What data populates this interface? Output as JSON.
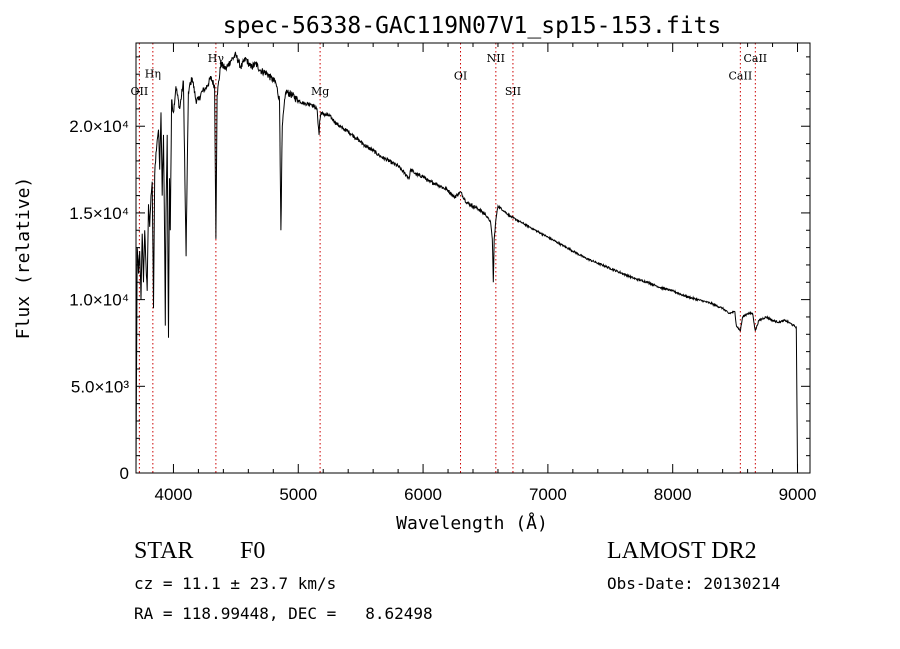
{
  "chart_data": {
    "type": "line",
    "title": "spec-56338-GAC119N07V1_sp15-153.fits",
    "xlabel": "Wavelength (Å)",
    "ylabel": "Flux (relative)",
    "xlim": [
      3700,
      9100
    ],
    "ylim": [
      0,
      24800
    ],
    "x_ticks": [
      {
        "value": 4000,
        "label": "4000"
      },
      {
        "value": 5000,
        "label": "5000"
      },
      {
        "value": 6000,
        "label": "6000"
      },
      {
        "value": 7000,
        "label": "7000"
      },
      {
        "value": 8000,
        "label": "8000"
      },
      {
        "value": 9000,
        "label": "9000"
      }
    ],
    "y_ticks": [
      {
        "value": 0,
        "label": "0"
      },
      {
        "value": 5000,
        "label": "5.0×10³"
      },
      {
        "value": 10000,
        "label": "1.0×10⁴"
      },
      {
        "value": 15000,
        "label": "1.5×10⁴"
      },
      {
        "value": 20000,
        "label": "2.0×10⁴"
      }
    ],
    "line_color": "#000000",
    "marker_color": "#cc0000",
    "lines": [
      {
        "label": "OII",
        "wavelength": 3727,
        "label_flux": 21800
      },
      {
        "label": "Hη",
        "wavelength": 3835,
        "label_flux": 22800
      },
      {
        "label": "Hγ",
        "wavelength": 4340,
        "label_flux": 23700
      },
      {
        "label": "Mg",
        "wavelength": 5175,
        "label_flux": 21800
      },
      {
        "label": "OI",
        "wavelength": 6300,
        "label_flux": 22700
      },
      {
        "label": "NII",
        "wavelength": 6583,
        "label_flux": 23700
      },
      {
        "label": "SII",
        "wavelength": 6720,
        "label_flux": 21800
      },
      {
        "label": "CaII",
        "wavelength": 8542,
        "label_flux": 22700
      },
      {
        "label": "CaII",
        "wavelength": 8662,
        "label_flux": 23700
      }
    ],
    "series": [
      {
        "x": [
          3700,
          3710,
          3720,
          3730,
          3740,
          3750,
          3760,
          3770,
          3780,
          3790,
          3800,
          3810,
          3820,
          3830,
          3840,
          3850,
          3860,
          3870,
          3880,
          3890,
          3900,
          3910,
          3920,
          3930,
          3935,
          3940,
          3950,
          3960,
          3968,
          3975,
          3985,
          4000,
          4020,
          4050,
          4080,
          4101,
          4120,
          4150,
          4180,
          4200,
          4230,
          4260,
          4300,
          4330,
          4340,
          4350,
          4380,
          4420,
          4460,
          4500,
          4540,
          4580,
          4620,
          4660,
          4700,
          4740,
          4780,
          4820,
          4850,
          4861,
          4872,
          4900,
          4950,
          5000,
          5050,
          5100,
          5150,
          5167,
          5172,
          5183,
          5200,
          5250,
          5300,
          5350,
          5400,
          5450,
          5500,
          5550,
          5600,
          5650,
          5700,
          5750,
          5800,
          5850,
          5890,
          5900,
          5950,
          6000,
          6050,
          6100,
          6150,
          6200,
          6250,
          6300,
          6350,
          6400,
          6450,
          6500,
          6540,
          6555,
          6563,
          6570,
          6585,
          6600,
          6650,
          6700,
          6750,
          6800,
          6850,
          6900,
          6950,
          7000,
          7100,
          7200,
          7300,
          7400,
          7500,
          7600,
          7700,
          7800,
          7900,
          8000,
          8100,
          8200,
          8300,
          8400,
          8450,
          8498,
          8510,
          8542,
          8560,
          8600,
          8640,
          8662,
          8690,
          8750,
          8800,
          8850,
          8900,
          8950,
          8990,
          9000
        ],
        "values": [
          100,
          13000,
          11500,
          12800,
          10000,
          13800,
          11000,
          14000,
          12000,
          10500,
          15500,
          14200,
          16000,
          16800,
          9500,
          17200,
          18500,
          19200,
          19800,
          17500,
          20800,
          16000,
          19500,
          13000,
          8500,
          15000,
          19500,
          7800,
          17000,
          14000,
          21500,
          20800,
          22300,
          21000,
          22600,
          12500,
          22000,
          22800,
          21500,
          21500,
          22000,
          22200,
          22800,
          22300,
          13500,
          21800,
          23600,
          23300,
          23800,
          24100,
          23400,
          23900,
          23400,
          23600,
          23200,
          23100,
          22800,
          22500,
          21500,
          14000,
          20000,
          22000,
          21800,
          21500,
          21300,
          21300,
          21000,
          19500,
          20300,
          20800,
          20700,
          20600,
          20200,
          19900,
          19700,
          19400,
          19100,
          18800,
          18600,
          18300,
          18100,
          17900,
          17700,
          17300,
          17000,
          17500,
          17200,
          17100,
          16800,
          16700,
          16500,
          16300,
          15900,
          16200,
          15600,
          15400,
          15200,
          14900,
          14500,
          13500,
          11000,
          13500,
          14700,
          15400,
          15100,
          14800,
          14600,
          14400,
          14200,
          14000,
          13800,
          13600,
          13200,
          12800,
          12400,
          12100,
          11800,
          11500,
          11200,
          11000,
          10700,
          10500,
          10200,
          10000,
          9800,
          9500,
          9200,
          9300,
          8500,
          8200,
          9000,
          9200,
          9200,
          8200,
          8800,
          9000,
          8800,
          8700,
          8800,
          8600,
          8400,
          100
        ]
      }
    ]
  },
  "info": {
    "object_class": "STAR",
    "subclass": "F0",
    "survey": "LAMOST DR2",
    "cz": "cz = 11.1 ± 23.7 km/s",
    "obs_date": "Obs-Date: 20130214",
    "coords": "RA = 118.99448, DEC =   8.62498"
  }
}
